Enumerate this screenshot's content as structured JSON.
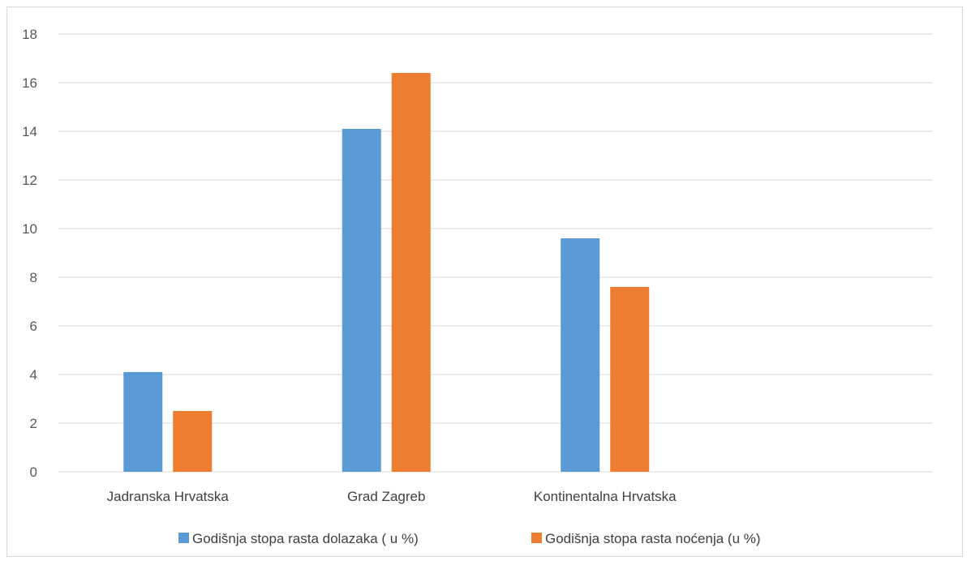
{
  "colors": {
    "series0": "#5b9bd5",
    "series1": "#ed7d31",
    "grid": "#d9d9d9",
    "axis_text": "#595959"
  },
  "chart_data": {
    "type": "bar",
    "title": "",
    "xlabel": "",
    "ylabel": "",
    "categories": [
      "Jadranska Hrvatska",
      "Grad Zagreb",
      "Kontinentalna Hrvatska",
      ""
    ],
    "series": [
      {
        "name": "Godišnja stopa rasta dolazaka ( u %)",
        "values": [
          4.1,
          14.1,
          9.6,
          null
        ]
      },
      {
        "name": "Godišnja stopa rasta noćenja (u %)",
        "values": [
          2.5,
          16.4,
          7.6,
          null
        ]
      }
    ],
    "ylim": [
      0,
      18
    ],
    "yticks": [
      0,
      2,
      4,
      6,
      8,
      10,
      12,
      14,
      16,
      18
    ],
    "grid": true,
    "legend": "bottom"
  }
}
